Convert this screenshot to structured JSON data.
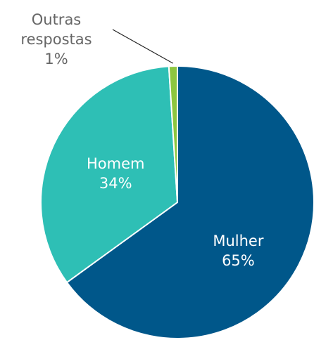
{
  "chart_data": {
    "type": "pie",
    "categories": [
      "Mulher",
      "Homem",
      "Outras respostas"
    ],
    "values": [
      65,
      34,
      1
    ],
    "value_labels": [
      "65%",
      "34%",
      "1%"
    ],
    "colors": [
      "#00578a",
      "#2ebfb5",
      "#8dc63f"
    ]
  }
}
